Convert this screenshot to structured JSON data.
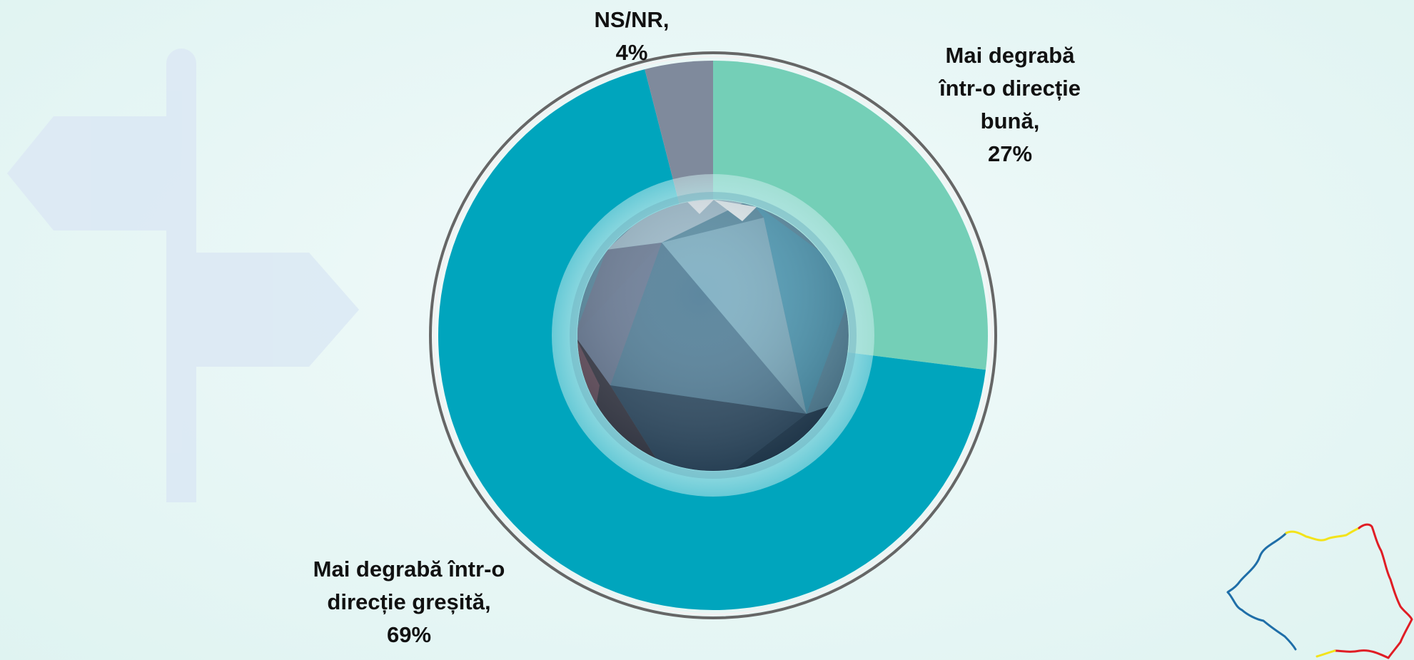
{
  "chart_data": {
    "type": "pie",
    "variant": "donut",
    "slices": [
      {
        "label": "Mai degrabă într-o direcție bună",
        "value": 27,
        "color": "#74cfb7"
      },
      {
        "label": "Mai degrabă într-o direcție greșită",
        "value": 69,
        "color": "#00a5bd"
      },
      {
        "label": "NS/NR",
        "value": 4,
        "color": "#7f8a9c"
      }
    ],
    "data_labels": {
      "nsnr": {
        "line1": "NS/NR,",
        "line2": "4%"
      },
      "buna": {
        "line1": "Mai degrabă",
        "line2": "într-o direcție",
        "line3": "bună,",
        "line4": "27%"
      },
      "gresita": {
        "line1": "Mai degrabă într-o",
        "line2": "direcție greșită,",
        "line3": "69%"
      }
    },
    "start_angle": "12 o'clock",
    "direction": "clockwise",
    "legend": "none"
  },
  "decorations": {
    "signpost_icon": "signpost-icon",
    "map_icon": "romania-map-icon",
    "map_colors": [
      "#1f6ea8",
      "#f3e31a",
      "#e01d25"
    ]
  }
}
